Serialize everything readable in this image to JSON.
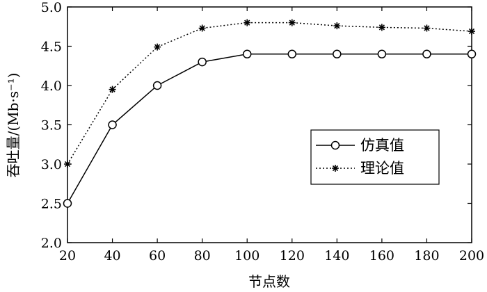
{
  "chart_data": {
    "type": "line",
    "x": [
      20,
      40,
      60,
      80,
      100,
      120,
      140,
      160,
      180,
      200
    ],
    "series": [
      {
        "name": "仿真值",
        "values": [
          2.5,
          3.5,
          4.0,
          4.3,
          4.4,
          4.4,
          4.4,
          4.4,
          4.4,
          4.4
        ],
        "line_style": "solid",
        "marker": "circle"
      },
      {
        "name": "理论值",
        "values": [
          3.0,
          3.95,
          4.49,
          4.73,
          4.8,
          4.8,
          4.76,
          4.74,
          4.73,
          4.69
        ],
        "line_style": "dotted",
        "marker": "star"
      }
    ],
    "xlabel": "节点数",
    "ylabel": "吞吐量/(Mb·s⁻¹)",
    "xlim": [
      20,
      200
    ],
    "ylim": [
      2.0,
      5.0
    ],
    "xticks": [
      "20",
      "40",
      "60",
      "80",
      "100",
      "120",
      "140",
      "160",
      "180",
      "200"
    ],
    "yticks": [
      "2.0",
      "2.5",
      "3.0",
      "3.5",
      "4.0",
      "4.5",
      "5.0"
    ],
    "grid": false,
    "legend_position": "center-right",
    "line_color": "#000000"
  }
}
